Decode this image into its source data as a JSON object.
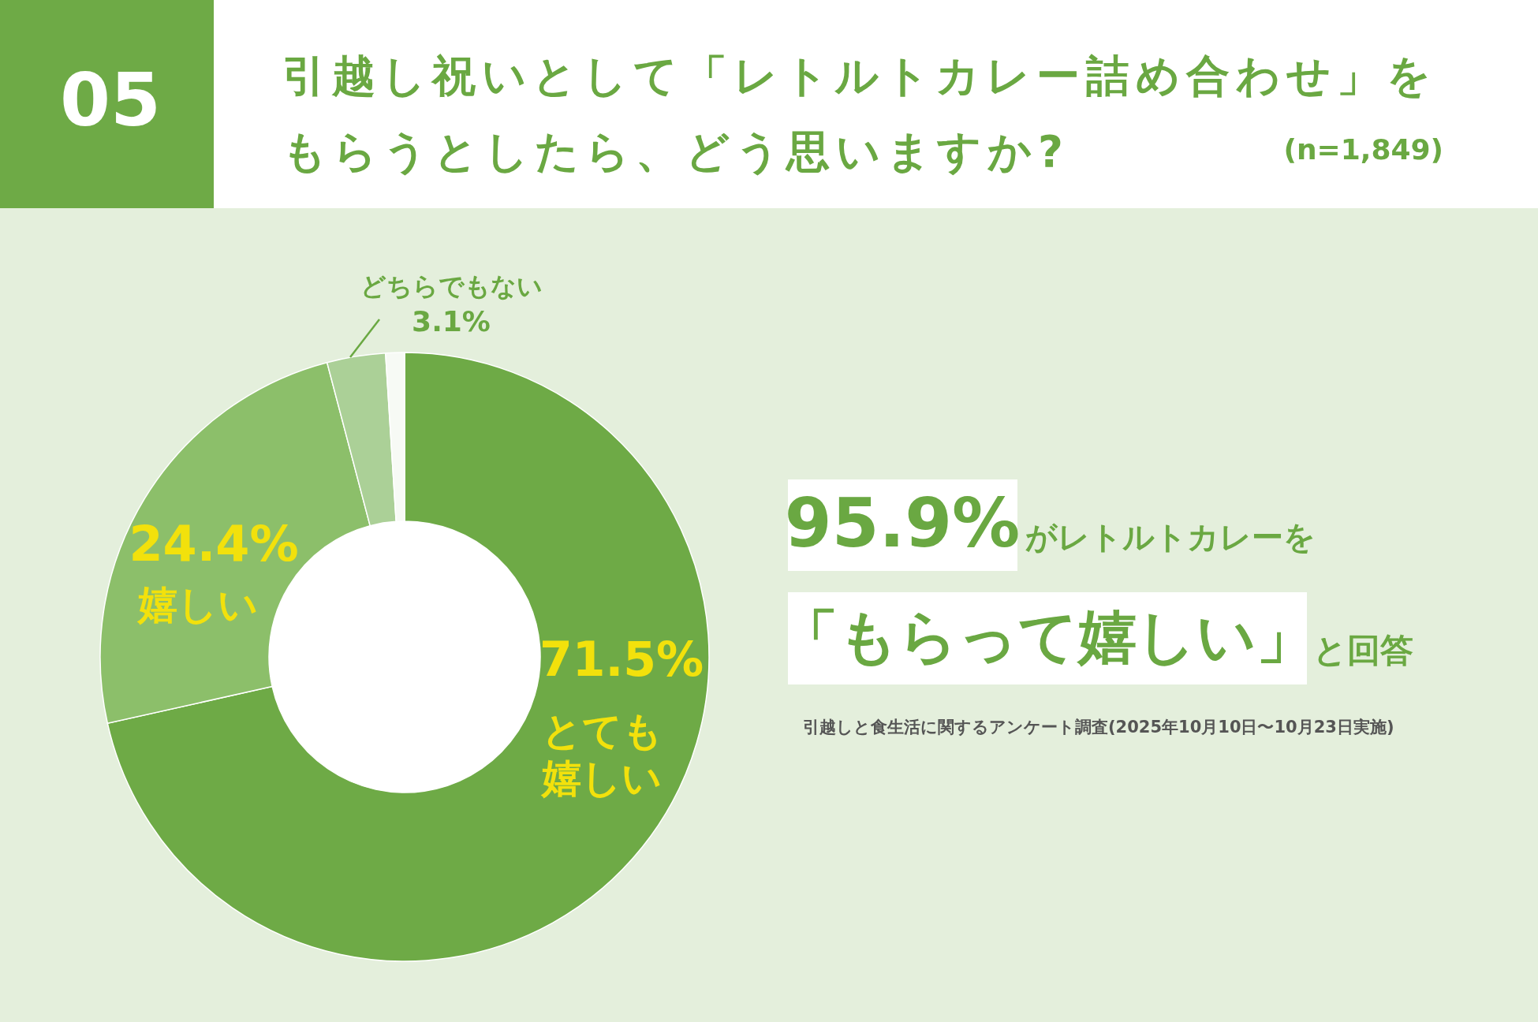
{
  "chart_data": {
    "type": "donut",
    "title": "引越し祝いとして「レトルトカレー詰め合わせ」をもらうとしたら、どう思いますか?",
    "subtitle": "(n=1,849)",
    "categories": [
      "とても嬉しい",
      "嬉しい",
      "どちらでもない",
      null
    ],
    "values": [
      71.5,
      24.4,
      3.1,
      1.0
    ],
    "colors": [
      "#6eaa46",
      "#8cbf6a",
      "#abd097",
      "#f7faf5"
    ],
    "value_labels": [
      "71.5%",
      "24.4%",
      "3.1%",
      null
    ],
    "annotations": [
      "05",
      "95.9%",
      "がレトルトカレーを",
      "「もらって嬉しい」",
      "と回答",
      "引越しと食生活に関するアンケート調査(2025年10月10日〜10月23日実施)"
    ]
  }
}
